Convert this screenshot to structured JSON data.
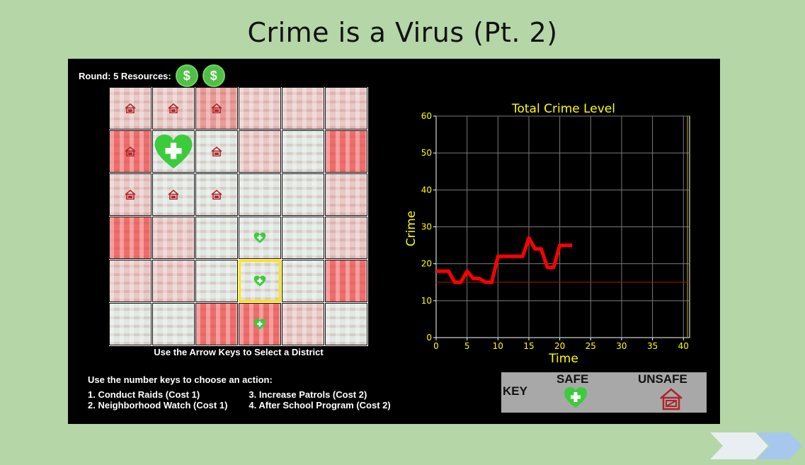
{
  "slide_title": "Crime is a Virus (Pt. 2)",
  "hud": {
    "round_label": "Round: 5 Resources:",
    "coin_symbol": "$",
    "coin_count": 2
  },
  "grid": {
    "caption": "Use the Arrow Keys to Select a District",
    "rows": [
      [
        {
          "level": "light",
          "icon": "house"
        },
        {
          "level": "light",
          "icon": "house"
        },
        {
          "level": "med",
          "icon": "house"
        },
        {
          "level": "light",
          "icon": ""
        },
        {
          "level": "light",
          "icon": ""
        },
        {
          "level": "light",
          "icon": ""
        }
      ],
      [
        {
          "level": "hot",
          "icon": "house"
        },
        {
          "level": "safe",
          "icon": "heart-big"
        },
        {
          "level": "safe",
          "icon": "house"
        },
        {
          "level": "light",
          "icon": ""
        },
        {
          "level": "safe",
          "icon": ""
        },
        {
          "level": "hot",
          "icon": ""
        }
      ],
      [
        {
          "level": "light",
          "icon": "house"
        },
        {
          "level": "safe",
          "icon": "house"
        },
        {
          "level": "safe",
          "icon": "house"
        },
        {
          "level": "safe",
          "icon": ""
        },
        {
          "level": "safe",
          "icon": ""
        },
        {
          "level": "light",
          "icon": ""
        }
      ],
      [
        {
          "level": "hot",
          "icon": ""
        },
        {
          "level": "light",
          "icon": ""
        },
        {
          "level": "safe",
          "icon": ""
        },
        {
          "level": "safe",
          "icon": "heart"
        },
        {
          "level": "safe",
          "icon": ""
        },
        {
          "level": "light",
          "icon": ""
        }
      ],
      [
        {
          "level": "light",
          "icon": ""
        },
        {
          "level": "light",
          "icon": ""
        },
        {
          "level": "safe",
          "icon": ""
        },
        {
          "level": "safe",
          "icon": "heart",
          "selected": true
        },
        {
          "level": "safe",
          "icon": ""
        },
        {
          "level": "hot",
          "icon": ""
        }
      ],
      [
        {
          "level": "safe",
          "icon": ""
        },
        {
          "level": "safe",
          "icon": ""
        },
        {
          "level": "hot",
          "icon": ""
        },
        {
          "level": "hot",
          "icon": "heart"
        },
        {
          "level": "light",
          "icon": ""
        },
        {
          "level": "safe",
          "icon": ""
        }
      ]
    ]
  },
  "actions": {
    "heading": "Use the number keys to choose an action:",
    "items": [
      "1. Conduct Raids (Cost 1)",
      "2. Neighborhood Watch (Cost 1)",
      "3. Increase Patrols (Cost 2)",
      "4. After School Program (Cost 2)"
    ]
  },
  "chart_data": {
    "type": "line",
    "title": "Total Crime Level",
    "xlabel": "Time",
    "ylabel": "Crime",
    "xlim": [
      0,
      41
    ],
    "ylim": [
      0,
      60
    ],
    "xticks": [
      0,
      5,
      10,
      15,
      20,
      25,
      30,
      35,
      40
    ],
    "yticks": [
      0,
      10,
      20,
      30,
      40,
      50,
      60
    ],
    "grid": true,
    "threshold": 15,
    "series": [
      {
        "x": [
          0,
          1,
          2,
          3,
          4,
          5,
          6,
          7,
          8,
          9,
          10,
          11,
          12,
          13,
          14,
          15,
          16,
          17,
          18,
          19,
          20,
          21,
          22
        ],
        "y": [
          18,
          18,
          18,
          15,
          15,
          18,
          16,
          16,
          15,
          15,
          22,
          22,
          22,
          22,
          22,
          27,
          24,
          24,
          19,
          19,
          25,
          25,
          25
        ]
      }
    ],
    "colors": {
      "line": "#ff0000",
      "text": "#ffff00",
      "grid": "#7a7a7a",
      "threshold": "#b01010",
      "axis": "#ffffff"
    }
  },
  "key": {
    "label": "KEY",
    "safe_label": "SAFE",
    "unsafe_label": "UNSAFE"
  },
  "colors": {
    "background": "#b5d6a6",
    "safe_green": "#3ccb3c",
    "unsafe_red": "#b0232a",
    "selection": "#ffe600"
  }
}
